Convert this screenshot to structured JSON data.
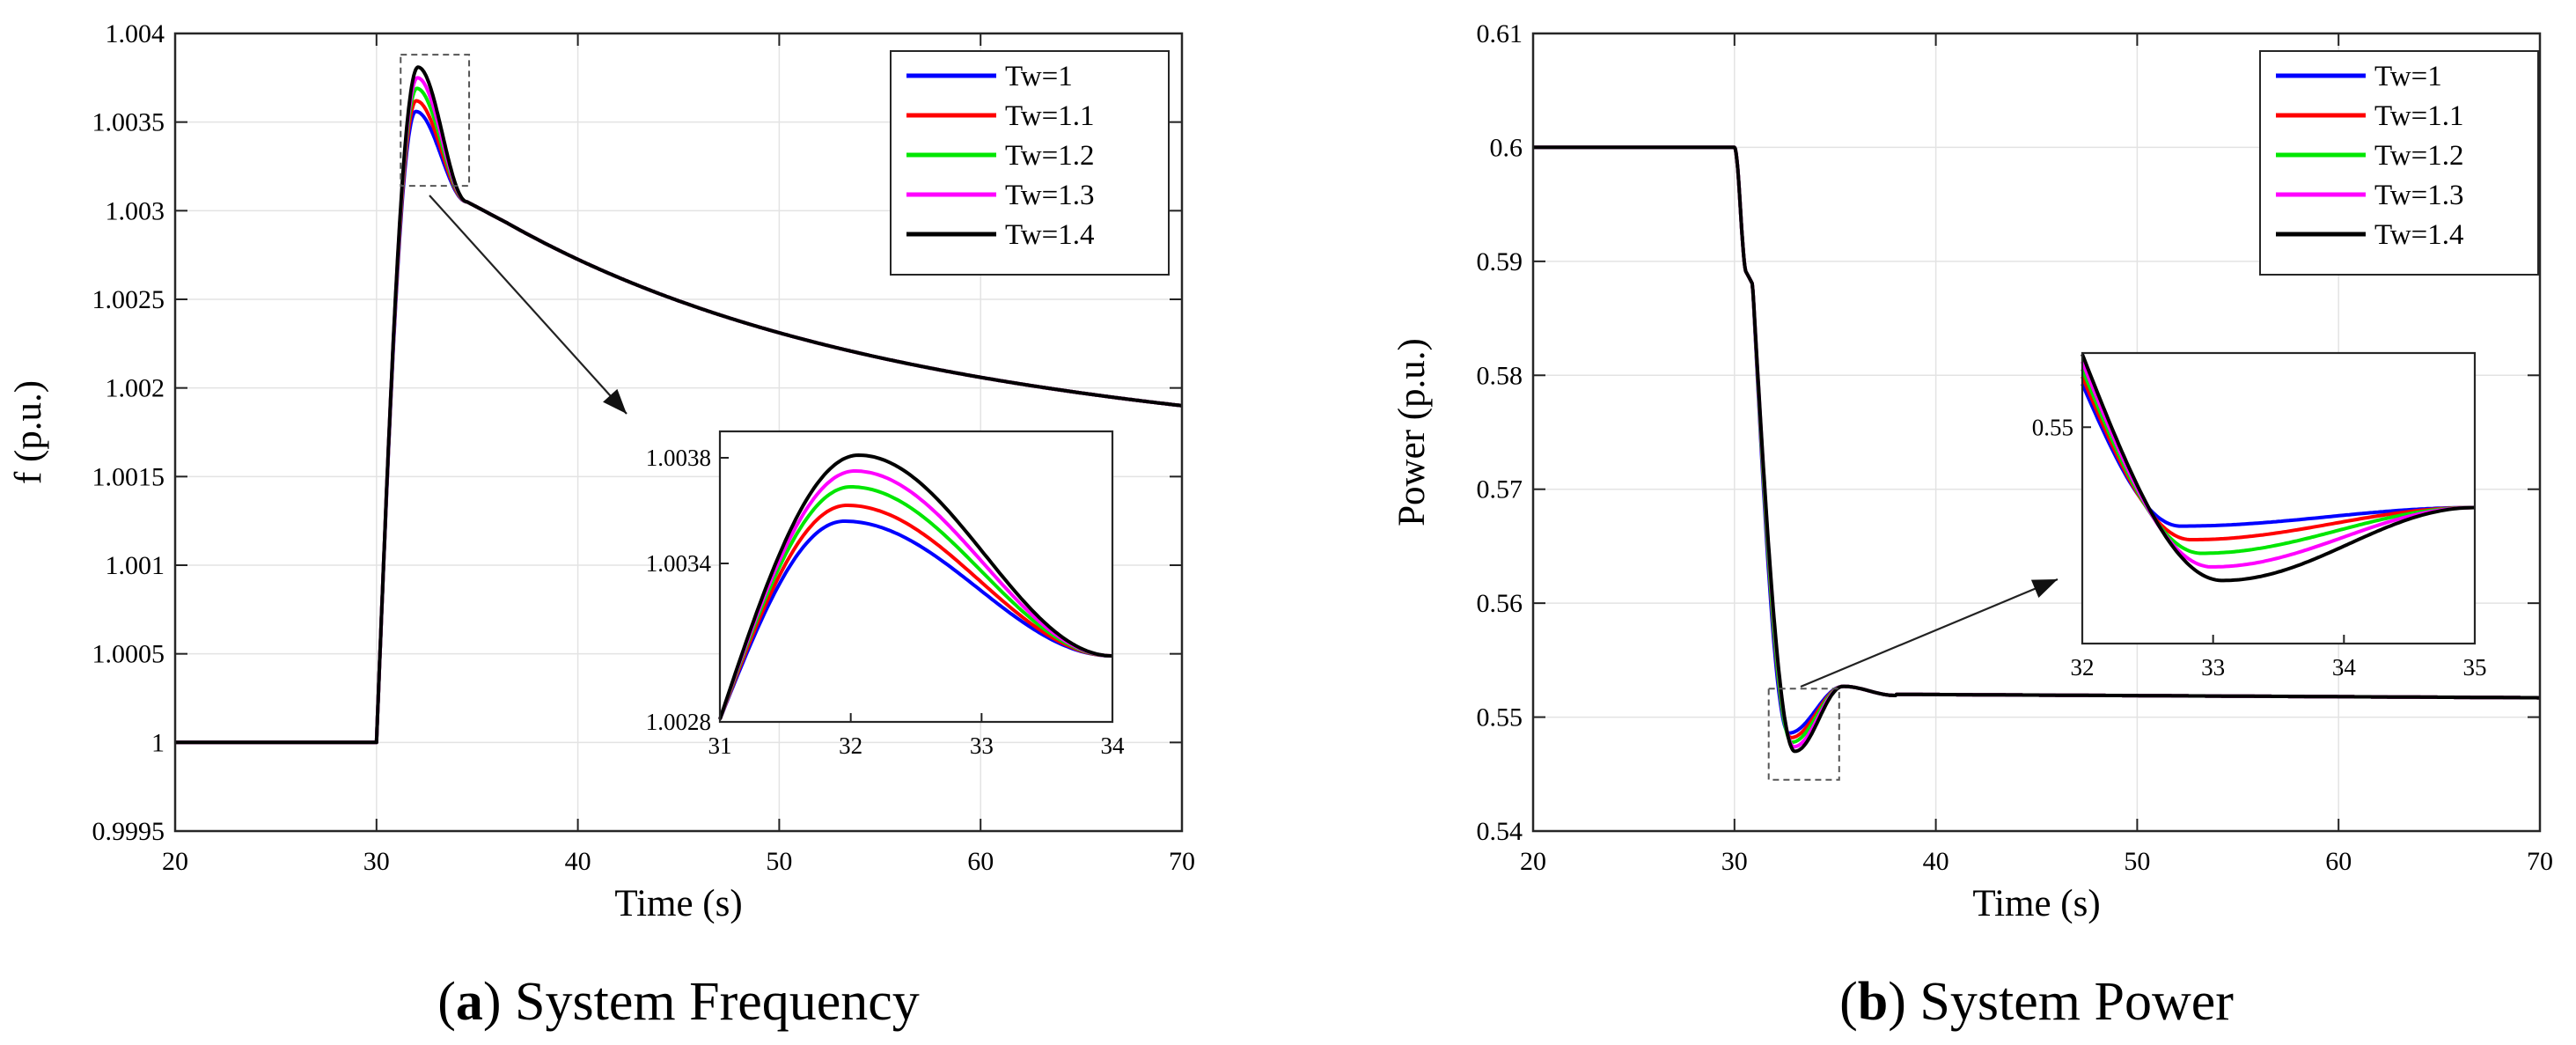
{
  "legend_colors": [
    "#0000ff",
    "#ff0000",
    "#00e600",
    "#ff00ff",
    "#000000"
  ],
  "chart_data": [
    {
      "type": "line",
      "caption_letter": "a",
      "caption_title": " System Frequency",
      "xlabel": "Time (s)",
      "ylabel": "f (p.u.)",
      "xlim": [
        20,
        70
      ],
      "ylim": [
        0.9995,
        1.004
      ],
      "xticks": [
        20,
        30,
        40,
        50,
        60,
        70
      ],
      "xtick_labels": [
        "20",
        "30",
        "40",
        "50",
        "60",
        "70"
      ],
      "yticks": [
        0.9995,
        1,
        1.0005,
        1.001,
        1.0015,
        1.002,
        1.0025,
        1.003,
        1.0035,
        1.004
      ],
      "ytick_labels": [
        "0.9995",
        "1",
        "1.0005",
        "1.001",
        "1.0015",
        "1.002",
        "1.0025",
        "1.003",
        "1.0035",
        "1.004"
      ],
      "grid": true,
      "legend_position": "top-right",
      "series": [
        {
          "name": "Tw=1",
          "color": "#0000ff",
          "peak": 1.00356,
          "peak_t": 31.95
        },
        {
          "name": "Tw=1.1",
          "color": "#ff0000",
          "peak": 1.00362,
          "peak_t": 31.97
        },
        {
          "name": "Tw=1.2",
          "color": "#00e600",
          "peak": 1.00369,
          "peak_t": 32.0
        },
        {
          "name": "Tw=1.3",
          "color": "#ff00ff",
          "peak": 1.00375,
          "peak_t": 32.03
        },
        {
          "name": "Tw=1.4",
          "color": "#000000",
          "peak": 1.00381,
          "peak_t": 32.06
        }
      ],
      "baseline": 1.0,
      "disturbance_t": 30,
      "shoulder": 1.00293,
      "end_value": 1.0019,
      "zoom_box": {
        "x": [
          31.2,
          34.6
        ],
        "y": [
          1.00314,
          1.00388
        ]
      },
      "inset": {
        "xlim": [
          31,
          34
        ],
        "ylim": [
          1.0028,
          1.0039
        ],
        "xticks": [
          31,
          32,
          33,
          34
        ],
        "xtick_labels": [
          "31",
          "32",
          "33",
          "34"
        ],
        "yticks": [
          1.0028,
          1.0034,
          1.0038
        ],
        "ytick_labels": [
          "1.0028",
          "1.0034",
          "1.0038"
        ],
        "start_value": 1.00281,
        "end_value": 1.00305
      }
    },
    {
      "type": "line",
      "caption_letter": "b",
      "caption_title": " System Power",
      "xlabel": "Time (s)",
      "ylabel": "Power (p.u.)",
      "xlim": [
        20,
        70
      ],
      "ylim": [
        0.54,
        0.61
      ],
      "xticks": [
        20,
        30,
        40,
        50,
        60,
        70
      ],
      "xtick_labels": [
        "20",
        "30",
        "40",
        "50",
        "60",
        "70"
      ],
      "yticks": [
        0.54,
        0.55,
        0.56,
        0.57,
        0.58,
        0.59,
        0.6,
        0.61
      ],
      "ytick_labels": [
        "0.54",
        "0.55",
        "0.56",
        "0.57",
        "0.58",
        "0.59",
        "0.6",
        "0.61"
      ],
      "grid": true,
      "legend_position": "top-right",
      "series": [
        {
          "name": "Tw=1",
          "color": "#0000ff",
          "min": 0.5486,
          "min_t": 32.7
        },
        {
          "name": "Tw=1.1",
          "color": "#ff0000",
          "min": 0.5482,
          "min_t": 32.8
        },
        {
          "name": "Tw=1.2",
          "color": "#00e600",
          "min": 0.5478,
          "min_t": 32.85
        },
        {
          "name": "Tw=1.3",
          "color": "#ff00ff",
          "min": 0.5474,
          "min_t": 32.95
        },
        {
          "name": "Tw=1.4",
          "color": "#000000",
          "min": 0.547,
          "min_t": 33.0
        }
      ],
      "baseline": 0.6,
      "disturbance_t": 30,
      "end_value": 0.5517,
      "zoom_box": {
        "x": [
          31.7,
          35.2
        ],
        "y": [
          0.5445,
          0.5525
        ]
      },
      "inset": {
        "xlim": [
          32,
          35
        ],
        "ylim": [
          0.5465,
          0.5512
        ],
        "xticks": [
          32,
          33,
          34,
          35
        ],
        "xtick_labels": [
          "32",
          "33",
          "34",
          "35"
        ],
        "yticks": [
          0.55
        ],
        "ytick_labels": [
          "0.55"
        ],
        "start_value": 0.5507,
        "end_value": 0.5487
      }
    }
  ]
}
